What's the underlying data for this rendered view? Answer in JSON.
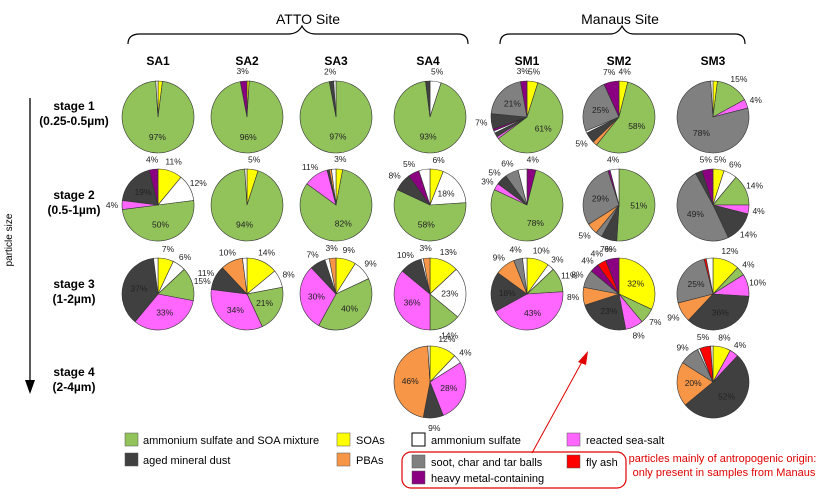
{
  "colors": {
    "amsoa": "#92c35b",
    "soa": "#ffff00",
    "amsulf": "#ffffff",
    "seasalt": "#ff66ff",
    "dust": "#404040",
    "pba": "#f79646",
    "soot": "#808080",
    "flyash": "#ff0000",
    "metal": "#8b0080",
    "annotation": "#e00000"
  },
  "chart_data": {
    "type": "pie",
    "sites": [
      {
        "label": "ATTO Site",
        "samples": [
          "SA1",
          "SA2",
          "SA3",
          "SA4"
        ]
      },
      {
        "label": "Manaus Site",
        "samples": [
          "SM1",
          "SM2",
          "SM3"
        ]
      }
    ],
    "samples": [
      "SA1",
      "SA2",
      "SA3",
      "SA4",
      "SM1",
      "SM2",
      "SM3"
    ],
    "axis_label": "particle size",
    "stages": [
      {
        "name": "stage 1",
        "range": "(0.25-0.5µm)"
      },
      {
        "name": "stage 2",
        "range": "(0.5-1µm)"
      },
      {
        "name": "stage 3",
        "range": "(1-2µm)"
      },
      {
        "name": "stage 4",
        "range": "(2-4µm)"
      }
    ],
    "categories": [
      {
        "key": "amsoa",
        "label": "ammonium sulfate and SOA mixture"
      },
      {
        "key": "dust",
        "label": "aged mineral dust"
      },
      {
        "key": "soa",
        "label": "SOAs"
      },
      {
        "key": "pba",
        "label": "PBAs"
      },
      {
        "key": "amsulf",
        "label": "ammonium sulfate"
      },
      {
        "key": "seasalt",
        "label": "reacted sea-salt"
      },
      {
        "key": "soot",
        "label": "soot, char and tar balls"
      },
      {
        "key": "flyash",
        "label": "fly ash"
      },
      {
        "key": "metal",
        "label": "heavy metal-containing"
      }
    ],
    "pies": [
      {
        "sample": "SA1",
        "stage": 1,
        "slices": [
          {
            "cat": "soa",
            "value": 2
          },
          {
            "cat": "amsoa",
            "value": 97,
            "label": "97%"
          },
          {
            "cat": "amsulf",
            "value": 1
          }
        ]
      },
      {
        "sample": "SA2",
        "stage": 1,
        "slices": [
          {
            "cat": "soa",
            "value": 1
          },
          {
            "cat": "amsoa",
            "value": 96,
            "label": "96%"
          },
          {
            "cat": "metal",
            "value": 3,
            "label": "3%"
          }
        ]
      },
      {
        "sample": "SA3",
        "stage": 1,
        "slices": [
          {
            "cat": "amsoa",
            "value": 97,
            "label": "97%"
          },
          {
            "cat": "dust",
            "value": 2,
            "label": "2%"
          },
          {
            "cat": "amsulf",
            "value": 1
          }
        ]
      },
      {
        "sample": "SA4",
        "stage": 1,
        "slices": [
          {
            "cat": "amsulf",
            "value": 5,
            "label": "5%"
          },
          {
            "cat": "amsoa",
            "value": 93,
            "label": "93%"
          },
          {
            "cat": "dust",
            "value": 2
          }
        ]
      },
      {
        "sample": "SM1",
        "stage": 1,
        "slices": [
          {
            "cat": "soa",
            "value": 5,
            "label": "5%"
          },
          {
            "cat": "amsoa",
            "value": 61,
            "label": "61%"
          },
          {
            "cat": "seasalt",
            "value": 1
          },
          {
            "cat": "dust",
            "value": 2
          },
          {
            "cat": "amsulf",
            "value": 1
          },
          {
            "cat": "metal",
            "value": 1
          },
          {
            "cat": "dust",
            "value": 7,
            "label": "7%"
          },
          {
            "cat": "soot",
            "value": 21,
            "label": "21%"
          },
          {
            "cat": "metal",
            "value": 3,
            "label": "3%"
          }
        ]
      },
      {
        "sample": "SM2",
        "stage": 1,
        "slices": [
          {
            "cat": "soa",
            "value": 4,
            "label": "4%"
          },
          {
            "cat": "amsoa",
            "value": 58,
            "label": "58%"
          },
          {
            "cat": "pba",
            "value": 2
          },
          {
            "cat": "dust",
            "value": 5,
            "label": "5%"
          },
          {
            "cat": "amsulf",
            "value": 1
          },
          {
            "cat": "soot",
            "value": 25,
            "label": "25%"
          },
          {
            "cat": "metal",
            "value": 7,
            "label": "7%"
          }
        ]
      },
      {
        "sample": "SM3",
        "stage": 1,
        "slices": [
          {
            "cat": "soa",
            "value": 2
          },
          {
            "cat": "amsoa",
            "value": 15,
            "label": "15%"
          },
          {
            "cat": "seasalt",
            "value": 4,
            "label": "4%"
          },
          {
            "cat": "soot",
            "value": 78,
            "label": "78%"
          },
          {
            "cat": "amsulf",
            "value": 1
          }
        ]
      },
      {
        "sample": "SA1",
        "stage": 2,
        "slices": [
          {
            "cat": "soa",
            "value": 11,
            "label": "11%"
          },
          {
            "cat": "amsulf",
            "value": 12,
            "label": "12%"
          },
          {
            "cat": "amsoa",
            "value": 50,
            "label": "50%"
          },
          {
            "cat": "seasalt",
            "value": 4,
            "label": "4%"
          },
          {
            "cat": "dust",
            "value": 19,
            "label": "19%"
          },
          {
            "cat": "metal",
            "value": 4,
            "label": "4%"
          }
        ]
      },
      {
        "sample": "SA2",
        "stage": 2,
        "slices": [
          {
            "cat": "soa",
            "value": 5,
            "label": "5%"
          },
          {
            "cat": "amsoa",
            "value": 94,
            "label": "94%"
          },
          {
            "cat": "amsulf",
            "value": 1
          }
        ]
      },
      {
        "sample": "SA3",
        "stage": 2,
        "slices": [
          {
            "cat": "soa",
            "value": 3,
            "label": "3%"
          },
          {
            "cat": "amsoa",
            "value": 82,
            "label": "82%"
          },
          {
            "cat": "seasalt",
            "value": 11,
            "label": "11%"
          },
          {
            "cat": "dust",
            "value": 1
          },
          {
            "cat": "pba",
            "value": 1
          },
          {
            "cat": "amsulf",
            "value": 2
          }
        ]
      },
      {
        "sample": "SA4",
        "stage": 2,
        "slices": [
          {
            "cat": "soa",
            "value": 6,
            "label": "6%"
          },
          {
            "cat": "amsulf",
            "value": 18,
            "label": "18%"
          },
          {
            "cat": "amsoa",
            "value": 58,
            "label": "58%"
          },
          {
            "cat": "dust",
            "value": 8,
            "label": "8%"
          },
          {
            "cat": "metal",
            "value": 5,
            "label": "5%"
          },
          {
            "cat": "amsulf",
            "value": 5
          }
        ]
      },
      {
        "sample": "SM1",
        "stage": 2,
        "slices": [
          {
            "cat": "metal",
            "value": 4,
            "label": "4%"
          },
          {
            "cat": "amsoa",
            "value": 78,
            "label": "78%"
          },
          {
            "cat": "seasalt",
            "value": 3,
            "label": "3%"
          },
          {
            "cat": "dust",
            "value": 5,
            "label": "5%"
          },
          {
            "cat": "soot",
            "value": 6,
            "label": "6%"
          },
          {
            "cat": "amsulf",
            "value": 4
          }
        ]
      },
      {
        "sample": "SM2",
        "stage": 2,
        "slices": [
          {
            "cat": "amsoa",
            "value": 51,
            "label": "51%"
          },
          {
            "cat": "dust",
            "value": 7,
            "label": "7%"
          },
          {
            "cat": "soot",
            "value": 3
          },
          {
            "cat": "pba",
            "value": 5,
            "label": "5%"
          },
          {
            "cat": "soot",
            "value": 29,
            "label": "29%"
          },
          {
            "cat": "metal",
            "value": 1
          },
          {
            "cat": "amsulf",
            "value": 4,
            "label": "4%"
          }
        ]
      },
      {
        "sample": "SM3",
        "stage": 2,
        "slices": [
          {
            "cat": "soa",
            "value": 5,
            "label": "5%"
          },
          {
            "cat": "amsulf",
            "value": 6,
            "label": "6%"
          },
          {
            "cat": "amsoa",
            "value": 14,
            "label": "14%"
          },
          {
            "cat": "seasalt",
            "value": 4,
            "label": "4%"
          },
          {
            "cat": "dust",
            "value": 14,
            "label": "14%"
          },
          {
            "cat": "soot",
            "value": 49,
            "label": "49%"
          },
          {
            "cat": "dust",
            "value": 3
          },
          {
            "cat": "metal",
            "value": 5,
            "label": "5%"
          }
        ]
      },
      {
        "sample": "SA1",
        "stage": 3,
        "slices": [
          {
            "cat": "soa",
            "value": 7,
            "label": "7%"
          },
          {
            "cat": "amsulf",
            "value": 6,
            "label": "6%"
          },
          {
            "cat": "amsoa",
            "value": 15,
            "label": "15%"
          },
          {
            "cat": "seasalt",
            "value": 33,
            "label": "33%"
          },
          {
            "cat": "dust",
            "value": 37,
            "label": "37%"
          },
          {
            "cat": "amsulf",
            "value": 2
          }
        ]
      },
      {
        "sample": "SA2",
        "stage": 3,
        "slices": [
          {
            "cat": "soa",
            "value": 14,
            "label": "14%"
          },
          {
            "cat": "amsulf",
            "value": 8,
            "label": "8%"
          },
          {
            "cat": "amsoa",
            "value": 21,
            "label": "21%"
          },
          {
            "cat": "seasalt",
            "value": 34,
            "label": "34%"
          },
          {
            "cat": "dust",
            "value": 11,
            "label": "11%"
          },
          {
            "cat": "pba",
            "value": 10,
            "label": "10%"
          },
          {
            "cat": "amsulf",
            "value": 2
          }
        ]
      },
      {
        "sample": "SA3",
        "stage": 3,
        "slices": [
          {
            "cat": "soa",
            "value": 9,
            "label": "9%"
          },
          {
            "cat": "amsulf",
            "value": 9,
            "label": "9%"
          },
          {
            "cat": "amsoa",
            "value": 40,
            "label": "40%"
          },
          {
            "cat": "seasalt",
            "value": 30,
            "label": "30%"
          },
          {
            "cat": "dust",
            "value": 7,
            "label": "7%"
          },
          {
            "cat": "amsulf",
            "value": 2
          },
          {
            "cat": "pba",
            "value": 3,
            "label": "3%"
          }
        ]
      },
      {
        "sample": "SA4",
        "stage": 3,
        "slices": [
          {
            "cat": "soa",
            "value": 13,
            "label": "13%"
          },
          {
            "cat": "amsulf",
            "value": 23,
            "label": "23%"
          },
          {
            "cat": "amsoa",
            "value": 14,
            "label": "14%"
          },
          {
            "cat": "seasalt",
            "value": 36,
            "label": "36%"
          },
          {
            "cat": "dust",
            "value": 10,
            "label": "10%"
          },
          {
            "cat": "amsulf",
            "value": 1
          },
          {
            "cat": "pba",
            "value": 3,
            "label": "3%"
          }
        ]
      },
      {
        "sample": "SM1",
        "stage": 3,
        "slices": [
          {
            "cat": "soa",
            "value": 10,
            "label": "10%"
          },
          {
            "cat": "amsulf",
            "value": 3,
            "label": "3%"
          },
          {
            "cat": "amsoa",
            "value": 11,
            "label": "11%"
          },
          {
            "cat": "seasalt",
            "value": 43,
            "label": "43%"
          },
          {
            "cat": "dust",
            "value": 18,
            "label": "18%"
          },
          {
            "cat": "pba",
            "value": 9,
            "label": "9%"
          },
          {
            "cat": "soot",
            "value": 4,
            "label": "4%"
          },
          {
            "cat": "amsulf",
            "value": 2
          }
        ]
      },
      {
        "sample": "SM2",
        "stage": 3,
        "slices": [
          {
            "cat": "soa",
            "value": 32,
            "label": "32%"
          },
          {
            "cat": "amsoa",
            "value": 7,
            "label": "7%"
          },
          {
            "cat": "seasalt",
            "value": 8,
            "label": "8%"
          },
          {
            "cat": "dust",
            "value": 23,
            "label": "23%"
          },
          {
            "cat": "pba",
            "value": 8,
            "label": "8%"
          },
          {
            "cat": "soot",
            "value": 8,
            "label": "8%"
          },
          {
            "cat": "metal",
            "value": 4,
            "label": "4%"
          },
          {
            "cat": "flyash",
            "value": 4,
            "label": "4%"
          },
          {
            "cat": "metal",
            "value": 6,
            "label": "6%"
          }
        ]
      },
      {
        "sample": "SM3",
        "stage": 3,
        "slices": [
          {
            "cat": "soa",
            "value": 12,
            "label": "12%"
          },
          {
            "cat": "amsoa",
            "value": 4,
            "label": "4%"
          },
          {
            "cat": "seasalt",
            "value": 10,
            "label": "10%"
          },
          {
            "cat": "dust",
            "value": 36,
            "label": "36%"
          },
          {
            "cat": "pba",
            "value": 9,
            "label": "9%"
          },
          {
            "cat": "soot",
            "value": 25,
            "label": "25%"
          },
          {
            "cat": "flyash",
            "value": 1
          },
          {
            "cat": "amsulf",
            "value": 3
          }
        ]
      },
      {
        "sample": "SA4",
        "stage": 4,
        "slices": [
          {
            "cat": "soa",
            "value": 12,
            "label": "12%"
          },
          {
            "cat": "amsulf",
            "value": 4,
            "label": "4%"
          },
          {
            "cat": "seasalt",
            "value": 28,
            "label": "28%"
          },
          {
            "cat": "dust",
            "value": 9,
            "label": "9%"
          },
          {
            "cat": "pba",
            "value": 46,
            "label": "46%"
          },
          {
            "cat": "amsulf",
            "value": 1
          }
        ]
      },
      {
        "sample": "SM3",
        "stage": 4,
        "slices": [
          {
            "cat": "soa",
            "value": 8,
            "label": "8%"
          },
          {
            "cat": "seasalt",
            "value": 4,
            "label": "4%"
          },
          {
            "cat": "dust",
            "value": 52,
            "label": "52%"
          },
          {
            "cat": "pba",
            "value": 20,
            "label": "20%"
          },
          {
            "cat": "soot",
            "value": 9,
            "label": "9%"
          },
          {
            "cat": "amsulf",
            "value": 1
          },
          {
            "cat": "flyash",
            "value": 5,
            "label": "5%"
          },
          {
            "cat": "amsulf",
            "value": 1
          }
        ]
      }
    ],
    "annotation": "particles mainly of antropogenic origin:\nonly present in samples from Manaus"
  }
}
